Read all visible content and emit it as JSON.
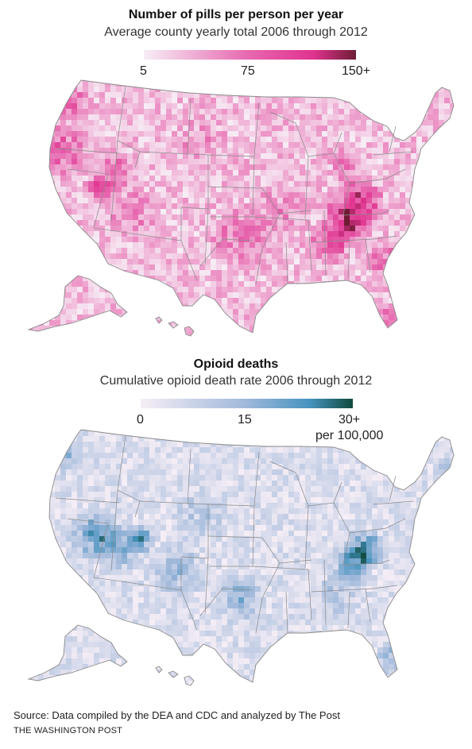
{
  "pills_map": {
    "title": "Number of pills per person per year",
    "subtitle": "Average county yearly total 2006 through 2012",
    "legend_ticks": [
      "5",
      "75",
      "150+"
    ],
    "colors": {
      "low": "#f7eef6",
      "mid": "#e766ae",
      "high": "#e0338f",
      "max": "#6e1c34"
    }
  },
  "deaths_map": {
    "title": "Opioid deaths",
    "subtitle": "Cumulative opioid death rate 2006 through 2012",
    "legend_ticks": [
      "0",
      "15",
      "30+"
    ],
    "legend_unit": "per 100,000",
    "colors": {
      "low": "#f6eef6",
      "mid": "#9fb8da",
      "high": "#4592be",
      "max": "#0f4a3c"
    }
  },
  "footer": {
    "source": "Source: Data compiled by the DEA and CDC and analyzed by The Post",
    "credit": "THE WASHINGTON POST"
  }
}
